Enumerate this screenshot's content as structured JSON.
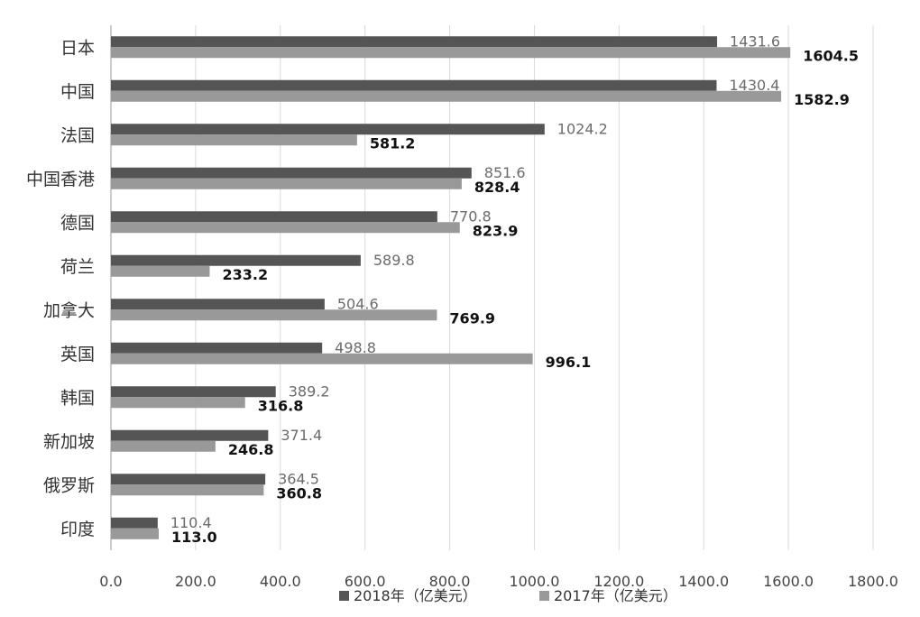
{
  "chart_data": {
    "type": "bar",
    "orientation": "horizontal",
    "categories": [
      "日本",
      "中国",
      "法国",
      "中国香港",
      "德国",
      "荷兰",
      "加拿大",
      "英国",
      "韩国",
      "新加坡",
      "俄罗斯",
      "印度"
    ],
    "series": [
      {
        "name": "2018年（亿美元）",
        "color": "#555555",
        "values": [
          1431.6,
          1430.4,
          1024.2,
          851.6,
          770.8,
          589.8,
          504.6,
          498.8,
          389.2,
          371.4,
          364.5,
          110.4
        ],
        "labels": [
          "1431.6",
          "1430.4",
          "1024.2",
          "851.6",
          "770.8",
          "589.8",
          "504.6",
          "498.8",
          "389.2",
          "371.4",
          "364.5",
          "110.4"
        ]
      },
      {
        "name": "2017年（亿美元）",
        "color": "#999999",
        "values": [
          1604.5,
          1582.9,
          581.2,
          828.4,
          823.9,
          233.2,
          769.9,
          996.1,
          316.8,
          246.8,
          360.8,
          113.0
        ],
        "labels": [
          "1604.5",
          "1582.9",
          "581.2",
          "828.4",
          "823.9",
          "233.2",
          "769.9",
          "996.1",
          "316.8",
          "246.8",
          "360.8",
          "113.0"
        ]
      }
    ],
    "x_ticks": [
      0,
      200,
      400,
      600,
      800,
      1000,
      1200,
      1400,
      1600,
      1800
    ],
    "x_tick_labels": [
      "0.0",
      "200.0",
      "400.0",
      "600.0",
      "800.0",
      "1000.0",
      "1200.0",
      "1400.0",
      "1600.0",
      "1800.0"
    ],
    "xlim": [
      0,
      1800
    ],
    "grid": "vertical",
    "legend_position": "bottom",
    "title": "",
    "xlabel": "",
    "ylabel": ""
  }
}
